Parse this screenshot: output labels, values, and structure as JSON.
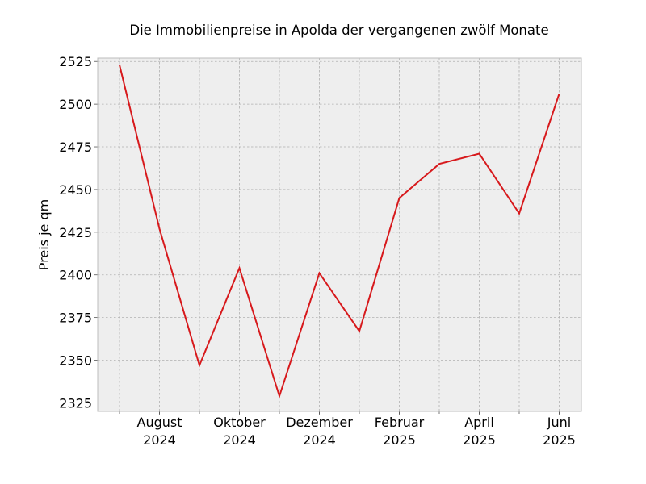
{
  "chart_data": {
    "type": "line",
    "title": "Die Immobilienpreise in Apolda der vergangenen zwölf Monate",
    "xlabel": "",
    "ylabel": "Preis je qm",
    "x": [
      "2024-07",
      "2024-08",
      "2024-09",
      "2024-10",
      "2024-11",
      "2024-12",
      "2025-01",
      "2025-02",
      "2025-03",
      "2025-04",
      "2025-05",
      "2025-06"
    ],
    "x_tick_labels": [
      {
        "x": "2024-08",
        "line1": "August",
        "line2": "2024"
      },
      {
        "x": "2024-10",
        "line1": "Oktober",
        "line2": "2024"
      },
      {
        "x": "2024-12",
        "line1": "Dezember",
        "line2": "2024"
      },
      {
        "x": "2025-02",
        "line1": "Februar",
        "line2": "2025"
      },
      {
        "x": "2025-04",
        "line1": "April",
        "line2": "2025"
      },
      {
        "x": "2025-06",
        "line1": "Juni",
        "line2": "2025"
      }
    ],
    "y_ticks": [
      2325,
      2350,
      2375,
      2400,
      2425,
      2450,
      2475,
      2500,
      2525
    ],
    "ylim": [
      2320,
      2527
    ],
    "grid": true,
    "colors": {
      "line": "#d7191c",
      "plot_background": "#eeeeee"
    },
    "series": [
      {
        "values": [
          2523,
          2427,
          2347,
          2404,
          2329,
          2401,
          2367,
          2445,
          2465,
          2471,
          2436,
          2506
        ]
      }
    ]
  }
}
